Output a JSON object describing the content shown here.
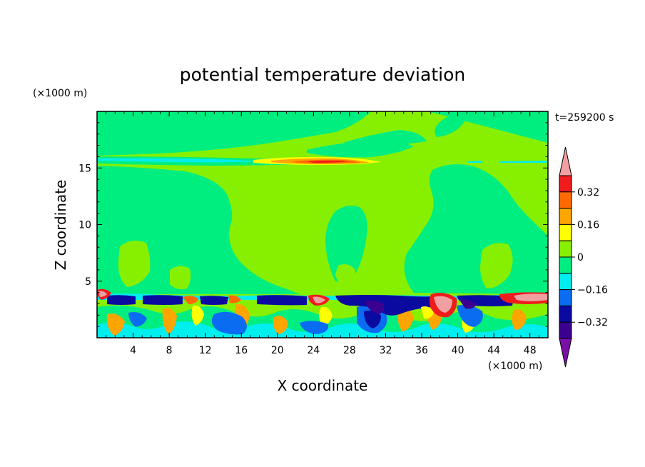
{
  "chart_data": {
    "type": "heatmap",
    "title": "potential temperature deviation",
    "time_label": "t=259200 s",
    "xlabel": "X coordinate",
    "ylabel": "Z coordinate",
    "x_unit": "(×1000 m)",
    "y_unit": "(×1000 m)",
    "xlim": [
      0,
      50
    ],
    "ylim": [
      0,
      20
    ],
    "x_ticks": [
      "4",
      "8",
      "12",
      "16",
      "20",
      "24",
      "28",
      "32",
      "36",
      "40",
      "44",
      "48"
    ],
    "y_ticks": [
      "5",
      "10",
      "15"
    ],
    "colorbar": {
      "labels": [
        "0.32",
        "0.16",
        "0",
        "-0.16",
        "-0.32"
      ],
      "levels": [
        0.4,
        0.32,
        0.24,
        0.16,
        0.08,
        0,
        -0.08,
        -0.16,
        -0.24,
        -0.32,
        -0.4
      ],
      "colors": [
        "#f0a0a0",
        "#ee1c1c",
        "#ff6a00",
        "#ffa500",
        "#ffff00",
        "#86f000",
        "#00ee80",
        "#00eeee",
        "#0a6cf0",
        "#0a0aa0",
        "#3c0090",
        "#7a10a8"
      ]
    },
    "boundary_layer_top": 3.6,
    "inversion_height": 15.6,
    "background": "#86f000"
  }
}
